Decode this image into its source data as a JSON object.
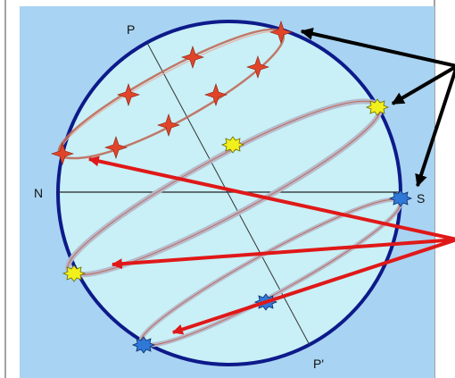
{
  "labels": {
    "p": "P",
    "p_prime": "P'",
    "n": "N",
    "s": "S"
  },
  "colors": {
    "panel_background": "#a8d3f2",
    "sphere_fill": "#c8f0f6",
    "sphere_outline": "#0d1a8a",
    "star_path": "#c06a5a",
    "sun_marker": "#f2f01c",
    "star_marker_red": "#e0452a",
    "star_marker_blue": "#2f78d8",
    "arrow_black": "#000000",
    "arrow_red": "#e01818"
  },
  "icons": {
    "black_arrows": "arrow-icon",
    "red_arrows": "arrow-icon",
    "markers": "star-icon"
  }
}
